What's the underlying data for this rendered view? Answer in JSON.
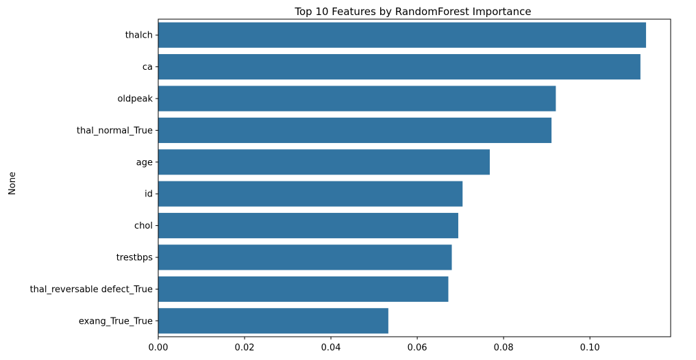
{
  "chart_data": {
    "type": "bar",
    "orientation": "horizontal",
    "title": "Top 10 Features by RandomForest Importance",
    "xlabel": "",
    "ylabel": "None",
    "categories": [
      "thalch",
      "ca",
      "oldpeak",
      "thal_normal_True",
      "age",
      "id",
      "chol",
      "trestbps",
      "thal_reversable defect_True",
      "exang_True_True"
    ],
    "values": [
      0.113,
      0.1117,
      0.0921,
      0.0911,
      0.0768,
      0.0705,
      0.0695,
      0.068,
      0.0672,
      0.0533
    ],
    "xlim": [
      0.0,
      0.1187
    ],
    "xticks": [
      0.0,
      0.02,
      0.04,
      0.06,
      0.08,
      0.1
    ],
    "xtick_labels": [
      "0.00",
      "0.02",
      "0.04",
      "0.06",
      "0.08",
      "0.10"
    ],
    "bar_color": "#3274a1",
    "grid": false
  }
}
